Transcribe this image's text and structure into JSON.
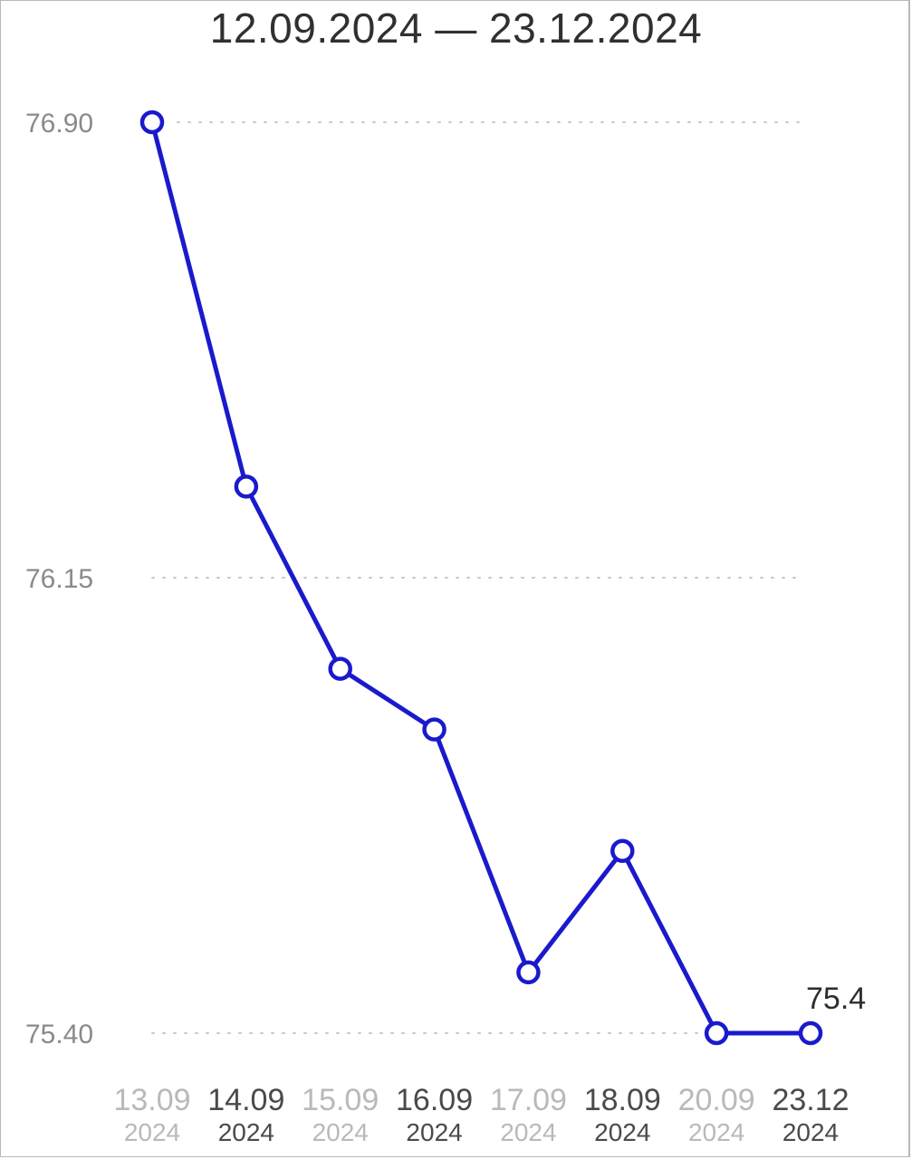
{
  "header": {
    "title": "12.09.2024 — 23.12.2024"
  },
  "colors": {
    "line": "#1a1acc",
    "grid": "#c8c8c8",
    "marker_fill": "#ffffff"
  },
  "chart_data": {
    "type": "line",
    "title": "12.09.2024 — 23.12.2024",
    "xlabel": "",
    "ylabel": "",
    "categories": [
      [
        "13.09",
        "2024"
      ],
      [
        "14.09",
        "2024"
      ],
      [
        "15.09",
        "2024"
      ],
      [
        "16.09",
        "2024"
      ],
      [
        "17.09",
        "2024"
      ],
      [
        "18.09",
        "2024"
      ],
      [
        "20.09",
        "2024"
      ],
      [
        "23.12",
        "2024"
      ]
    ],
    "category_emphasis": [
      "light",
      "bold",
      "light",
      "bold",
      "light",
      "bold",
      "light",
      "bold"
    ],
    "series": [
      {
        "values": [
          76.9,
          76.3,
          76.0,
          75.9,
          75.5,
          75.7,
          75.4,
          75.4
        ]
      }
    ],
    "yticks": [
      "76.90",
      "76.15",
      "75.40"
    ],
    "ytick_values": [
      76.9,
      76.15,
      75.4
    ],
    "ylim": [
      75.4,
      76.9
    ],
    "grid": "horizontal dotted",
    "end_label": "75.4"
  }
}
